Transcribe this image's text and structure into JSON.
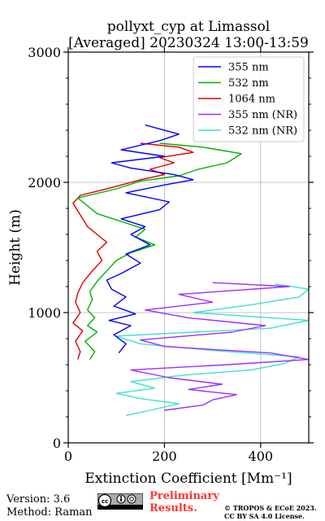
{
  "chart_data": {
    "type": "line",
    "title": "pollyxt_cyp at Limassol",
    "subtitle": "[Averaged] 20230324 13:00-13:59",
    "xlabel": "Extinction Coefficient [Mm⁻¹]",
    "ylabel": "Height (m)",
    "xlim": [
      0,
      500
    ],
    "ylim": [
      0,
      3000
    ],
    "xticks": [
      0,
      200,
      400
    ],
    "xtick_labels": [
      "0",
      "200",
      "400"
    ],
    "yticks": [
      0,
      1000,
      2000,
      3000
    ],
    "ytick_labels": [
      "0",
      "1000",
      "2000",
      "3000"
    ],
    "grid": true,
    "legend_position": "top-right",
    "series": [
      {
        "name": "355 nm",
        "color": "#0000ff",
        "points": [
          [
            105,
            690
          ],
          [
            120,
            760
          ],
          [
            95,
            830
          ],
          [
            130,
            900
          ],
          [
            85,
            940
          ],
          [
            140,
            990
          ],
          [
            95,
            1050
          ],
          [
            120,
            1120
          ],
          [
            90,
            1180
          ],
          [
            80,
            1250
          ],
          [
            110,
            1300
          ],
          [
            150,
            1380
          ],
          [
            120,
            1450
          ],
          [
            170,
            1520
          ],
          [
            130,
            1600
          ],
          [
            160,
            1660
          ],
          [
            110,
            1720
          ],
          [
            190,
            1790
          ],
          [
            210,
            1850
          ],
          [
            120,
            1920
          ],
          [
            200,
            1980
          ],
          [
            260,
            2020
          ],
          [
            220,
            2060
          ],
          [
            130,
            2110
          ],
          [
            90,
            2150
          ],
          [
            200,
            2200
          ],
          [
            110,
            2250
          ],
          [
            190,
            2320
          ],
          [
            230,
            2370
          ],
          [
            160,
            2440
          ]
        ]
      },
      {
        "name": "532 nm",
        "color": "#00b000",
        "points": [
          [
            45,
            640
          ],
          [
            55,
            700
          ],
          [
            35,
            780
          ],
          [
            60,
            850
          ],
          [
            40,
            900
          ],
          [
            55,
            960
          ],
          [
            40,
            1020
          ],
          [
            50,
            1100
          ],
          [
            45,
            1160
          ],
          [
            60,
            1240
          ],
          [
            80,
            1320
          ],
          [
            100,
            1400
          ],
          [
            130,
            1460
          ],
          [
            180,
            1520
          ],
          [
            140,
            1580
          ],
          [
            160,
            1640
          ],
          [
            110,
            1700
          ],
          [
            60,
            1760
          ],
          [
            40,
            1820
          ],
          [
            20,
            1880
          ],
          [
            100,
            1950
          ],
          [
            150,
            2010
          ],
          [
            230,
            2050
          ],
          [
            270,
            2100
          ],
          [
            330,
            2150
          ],
          [
            360,
            2220
          ],
          [
            280,
            2270
          ],
          [
            190,
            2300
          ]
        ]
      },
      {
        "name": "1064 nm",
        "color": "#dd0000",
        "points": [
          [
            20,
            640
          ],
          [
            25,
            700
          ],
          [
            15,
            780
          ],
          [
            30,
            860
          ],
          [
            10,
            920
          ],
          [
            25,
            1000
          ],
          [
            15,
            1080
          ],
          [
            20,
            1150
          ],
          [
            30,
            1230
          ],
          [
            50,
            1320
          ],
          [
            70,
            1400
          ],
          [
            60,
            1470
          ],
          [
            80,
            1540
          ],
          [
            60,
            1600
          ],
          [
            40,
            1660
          ],
          [
            30,
            1720
          ],
          [
            20,
            1780
          ],
          [
            10,
            1840
          ],
          [
            25,
            1900
          ],
          [
            90,
            1960
          ],
          [
            150,
            2020
          ],
          [
            200,
            2060
          ],
          [
            170,
            2100
          ],
          [
            220,
            2150
          ],
          [
            190,
            2190
          ],
          [
            260,
            2230
          ],
          [
            230,
            2270
          ],
          [
            150,
            2300
          ]
        ]
      },
      {
        "name": "355 nm (NR)",
        "color": "#9b30ff",
        "points": [
          [
            200,
            250
          ],
          [
            280,
            290
          ],
          [
            300,
            330
          ],
          [
            350,
            370
          ],
          [
            250,
            410
          ],
          [
            320,
            450
          ],
          [
            210,
            500
          ],
          [
            130,
            560
          ],
          [
            330,
            600
          ],
          [
            500,
            640
          ],
          [
            420,
            690
          ],
          [
            200,
            740
          ],
          [
            150,
            790
          ],
          [
            340,
            850
          ],
          [
            410,
            900
          ],
          [
            250,
            960
          ],
          [
            160,
            1020
          ],
          [
            300,
            1080
          ],
          [
            230,
            1140
          ],
          [
            460,
            1200
          ],
          [
            300,
            1230
          ]
        ]
      },
      {
        "name": "532 nm (NR)",
        "color": "#40e0d0",
        "points": [
          [
            120,
            210
          ],
          [
            170,
            250
          ],
          [
            230,
            300
          ],
          [
            150,
            340
          ],
          [
            100,
            380
          ],
          [
            180,
            420
          ],
          [
            130,
            470
          ],
          [
            240,
            520
          ],
          [
            380,
            560
          ],
          [
            450,
            610
          ],
          [
            480,
            660
          ],
          [
            300,
            710
          ],
          [
            150,
            760
          ],
          [
            100,
            820
          ],
          [
            420,
            880
          ],
          [
            500,
            940
          ],
          [
            260,
            1000
          ],
          [
            380,
            1060
          ],
          [
            480,
            1120
          ],
          [
            500,
            1180
          ],
          [
            430,
            1220
          ]
        ]
      }
    ]
  },
  "footer": {
    "version": "Version: 3.6",
    "method": "Method: Raman",
    "license_badge": "cc-by-sa-badge",
    "preliminary_line1": "Preliminary",
    "preliminary_line2": "Results.",
    "copyright_line1": "© TROPOS & ECoE 2023.",
    "copyright_line2": "CC BY SA 4.0 License."
  }
}
